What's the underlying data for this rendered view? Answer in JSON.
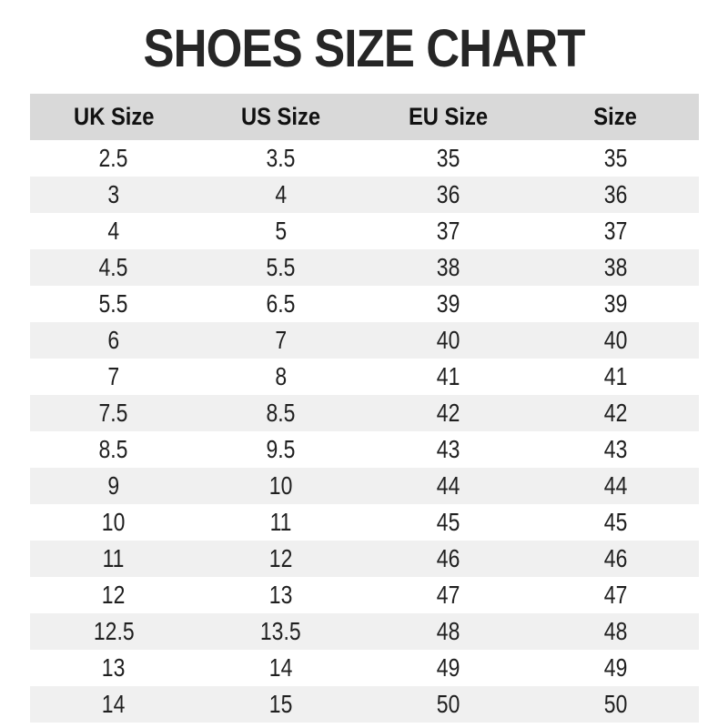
{
  "chart_data": {
    "type": "table",
    "title": "SHOES SIZE CHART",
    "columns": [
      "UK Size",
      "US Size",
      "EU Size",
      "Size"
    ],
    "rows": [
      [
        "2.5",
        "3.5",
        "35",
        "35"
      ],
      [
        "3",
        "4",
        "36",
        "36"
      ],
      [
        "4",
        "5",
        "37",
        "37"
      ],
      [
        "4.5",
        "5.5",
        "38",
        "38"
      ],
      [
        "5.5",
        "6.5",
        "39",
        "39"
      ],
      [
        "6",
        "7",
        "40",
        "40"
      ],
      [
        "7",
        "8",
        "41",
        "41"
      ],
      [
        "7.5",
        "8.5",
        "42",
        "42"
      ],
      [
        "8.5",
        "9.5",
        "43",
        "43"
      ],
      [
        "9",
        "10",
        "44",
        "44"
      ],
      [
        "10",
        "11",
        "45",
        "45"
      ],
      [
        "11",
        "12",
        "46",
        "46"
      ],
      [
        "12",
        "13",
        "47",
        "47"
      ],
      [
        "12.5",
        "13.5",
        "48",
        "48"
      ],
      [
        "13",
        "14",
        "49",
        "49"
      ],
      [
        "14",
        "15",
        "50",
        "50"
      ]
    ],
    "layout": {
      "header_background": "#d9d9d9",
      "stripe_background": "#f0f0f0",
      "row_background": "#ffffff",
      "title_color": "#262626",
      "text_color": "#1f1f1f",
      "stripe_pattern": "even rows shaded, first data row white"
    }
  }
}
